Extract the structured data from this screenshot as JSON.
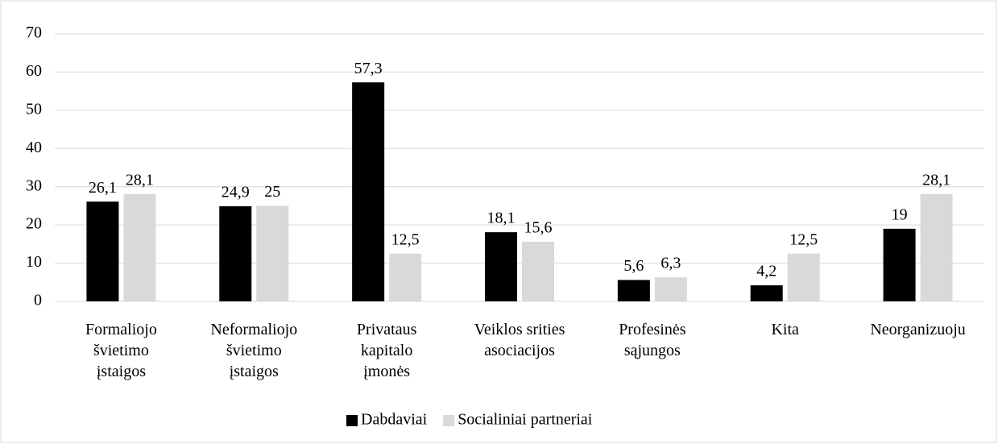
{
  "chart_data": {
    "type": "bar",
    "categories": [
      "Formaliojo\nšvietimo\nįstaigos",
      "Neformaliojo\nšvietimo\nįstaigos",
      "Privataus\nkapitalo\nįmonės",
      "Veiklos srities\nasociacijos",
      "Profesinės\nsąjungos",
      "Kita",
      "Neorganizuoju"
    ],
    "series": [
      {
        "name": "Dabdaviai",
        "color": "#000000",
        "values": [
          26.1,
          24.9,
          57.3,
          18.1,
          5.6,
          4.2,
          19
        ],
        "value_labels": [
          "26,1",
          "24,9",
          "57,3",
          "18,1",
          "5,6",
          "4,2",
          "19"
        ]
      },
      {
        "name": "Socialiniai partneriai",
        "color": "#d9d9d9",
        "values": [
          28.1,
          25,
          12.5,
          15.6,
          6.3,
          12.5,
          28.1
        ],
        "value_labels": [
          "28,1",
          "25",
          "12,5",
          "15,6",
          "6,3",
          "12,5",
          "28,1"
        ]
      }
    ],
    "ylim": [
      0,
      70
    ],
    "yticks": [
      0,
      10,
      20,
      30,
      40,
      50,
      60,
      70
    ],
    "grid": true,
    "legend": "bottom"
  }
}
